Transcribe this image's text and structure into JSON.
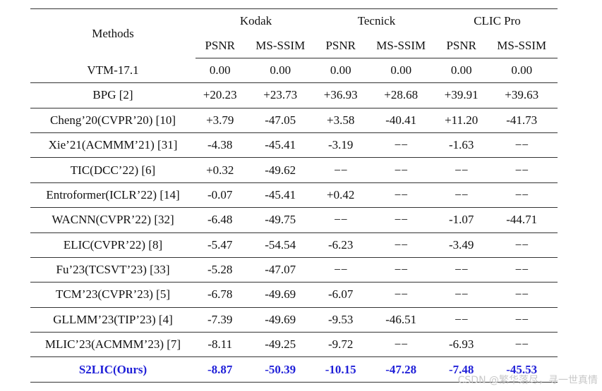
{
  "table": {
    "method_header": "Methods",
    "groups": [
      {
        "name": "Kodak",
        "metrics": [
          "PSNR",
          "MS-SSIM"
        ]
      },
      {
        "name": "Tecnick",
        "metrics": [
          "PSNR",
          "MS-SSIM"
        ]
      },
      {
        "name": "CLIC Pro",
        "metrics": [
          "PSNR",
          "MS-SSIM"
        ]
      }
    ],
    "rows": [
      {
        "method": "VTM-17.1",
        "cells": [
          "0.00",
          "0.00",
          "0.00",
          "0.00",
          "0.00",
          "0.00"
        ]
      },
      {
        "method": "BPG [2]",
        "cells": [
          "+20.23",
          "+23.73",
          "+36.93",
          "+28.68",
          "+39.91",
          "+39.63"
        ]
      },
      {
        "method": "Cheng’20(CVPR’20) [10]",
        "cells": [
          "+3.79",
          "-47.05",
          "+3.58",
          "-40.41",
          "+11.20",
          "-41.73"
        ]
      },
      {
        "method": "Xie’21(ACMMM’21) [31]",
        "cells": [
          "-4.38",
          "-45.41",
          "-3.19",
          "−−",
          "-1.63",
          "−−"
        ]
      },
      {
        "method": "TIC(DCC’22) [6]",
        "cells": [
          "+0.32",
          "-49.62",
          "−−",
          "−−",
          "−−",
          "−−"
        ]
      },
      {
        "method": "Entroformer(ICLR’22) [14]",
        "cells": [
          "-0.07",
          "-45.41",
          "+0.42",
          "−−",
          "−−",
          "−−"
        ]
      },
      {
        "method": "WACNN(CVPR’22) [32]",
        "cells": [
          "-6.48",
          "-49.75",
          "−−",
          "−−",
          "-1.07",
          "-44.71"
        ]
      },
      {
        "method": "ELIC(CVPR’22) [8]",
        "cells": [
          "-5.47",
          "-54.54",
          "-6.23",
          "−−",
          "-3.49",
          "−−"
        ]
      },
      {
        "method": "Fu’23(TCSVT’23) [33]",
        "cells": [
          "-5.28",
          "-47.07",
          "−−",
          "−−",
          "−−",
          "−−"
        ]
      },
      {
        "method": "TCM’23(CVPR’23) [5]",
        "cells": [
          "-6.78",
          "-49.69",
          "-6.07",
          "−−",
          "−−",
          "−−"
        ]
      },
      {
        "method": "GLLMM’23(TIP’23) [4]",
        "cells": [
          "-7.39",
          "-49.69",
          "-9.53",
          "-46.51",
          "−−",
          "−−"
        ]
      },
      {
        "method": "MLIC’23(ACMMM’23) [7]",
        "cells": [
          "-8.11",
          "-49.25",
          "-9.72",
          "−−",
          "-6.93",
          "−−"
        ]
      },
      {
        "method": "S2LIC(Ours)",
        "cells": [
          "-8.87",
          "-50.39",
          "-10.15",
          "-47.28",
          "-7.48",
          "-45.53"
        ]
      }
    ]
  },
  "watermark": "CSDN @繁华落尽，寻一世真情"
}
